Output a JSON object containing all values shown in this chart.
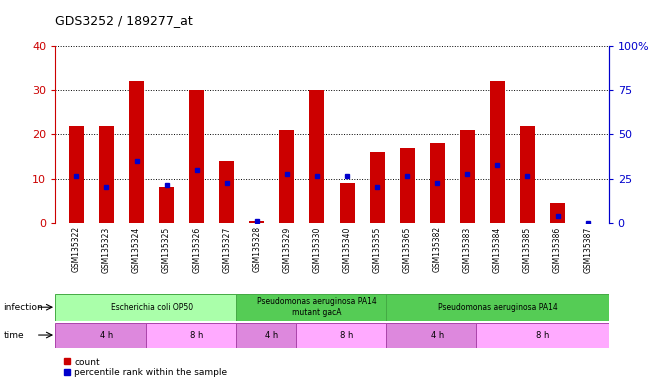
{
  "title": "GDS3252 / 189277_at",
  "samples": [
    "GSM135322",
    "GSM135323",
    "GSM135324",
    "GSM135325",
    "GSM135326",
    "GSM135327",
    "GSM135328",
    "GSM135329",
    "GSM135330",
    "GSM135340",
    "GSM135355",
    "GSM135365",
    "GSM135382",
    "GSM135383",
    "GSM135384",
    "GSM135385",
    "GSM135386",
    "GSM135387"
  ],
  "counts": [
    22,
    22,
    32,
    8,
    30,
    14,
    0.5,
    21,
    30,
    9,
    16,
    17,
    18,
    21,
    32,
    22,
    4.5,
    0
  ],
  "percentiles": [
    10.5,
    8,
    14,
    8.5,
    12,
    9,
    0.5,
    11,
    10.5,
    10.5,
    8,
    10.5,
    9,
    11,
    13,
    10.5,
    1.5,
    0
  ],
  "ylim_left": [
    0,
    40
  ],
  "ylim_right": [
    0,
    100
  ],
  "yticks_left": [
    0,
    10,
    20,
    30,
    40
  ],
  "yticks_right": [
    0,
    25,
    50,
    75,
    100
  ],
  "ytick_labels_right": [
    "0",
    "25",
    "50",
    "75",
    "100%"
  ],
  "bar_color": "#cc0000",
  "dot_color": "#0000cc",
  "tick_color_left": "#cc0000",
  "tick_color_right": "#0000cc",
  "infection_groups": [
    {
      "label": "Escherichia coli OP50",
      "start": 0,
      "end": 6,
      "color": "#aaffaa"
    },
    {
      "label": "Pseudomonas aeruginosa PA14\nmutant gacA",
      "start": 6,
      "end": 11,
      "color": "#55cc55"
    },
    {
      "label": "Pseudomonas aeruginosa PA14",
      "start": 11,
      "end": 18,
      "color": "#55cc55"
    }
  ],
  "time_groups": [
    {
      "label": "4 h",
      "start": 0,
      "end": 3,
      "color": "#dd88dd"
    },
    {
      "label": "8 h",
      "start": 3,
      "end": 6,
      "color": "#ffaaff"
    },
    {
      "label": "4 h",
      "start": 6,
      "end": 8,
      "color": "#dd88dd"
    },
    {
      "label": "8 h",
      "start": 8,
      "end": 11,
      "color": "#ffaaff"
    },
    {
      "label": "4 h",
      "start": 11,
      "end": 14,
      "color": "#dd88dd"
    },
    {
      "label": "8 h",
      "start": 14,
      "end": 18,
      "color": "#ffaaff"
    }
  ]
}
